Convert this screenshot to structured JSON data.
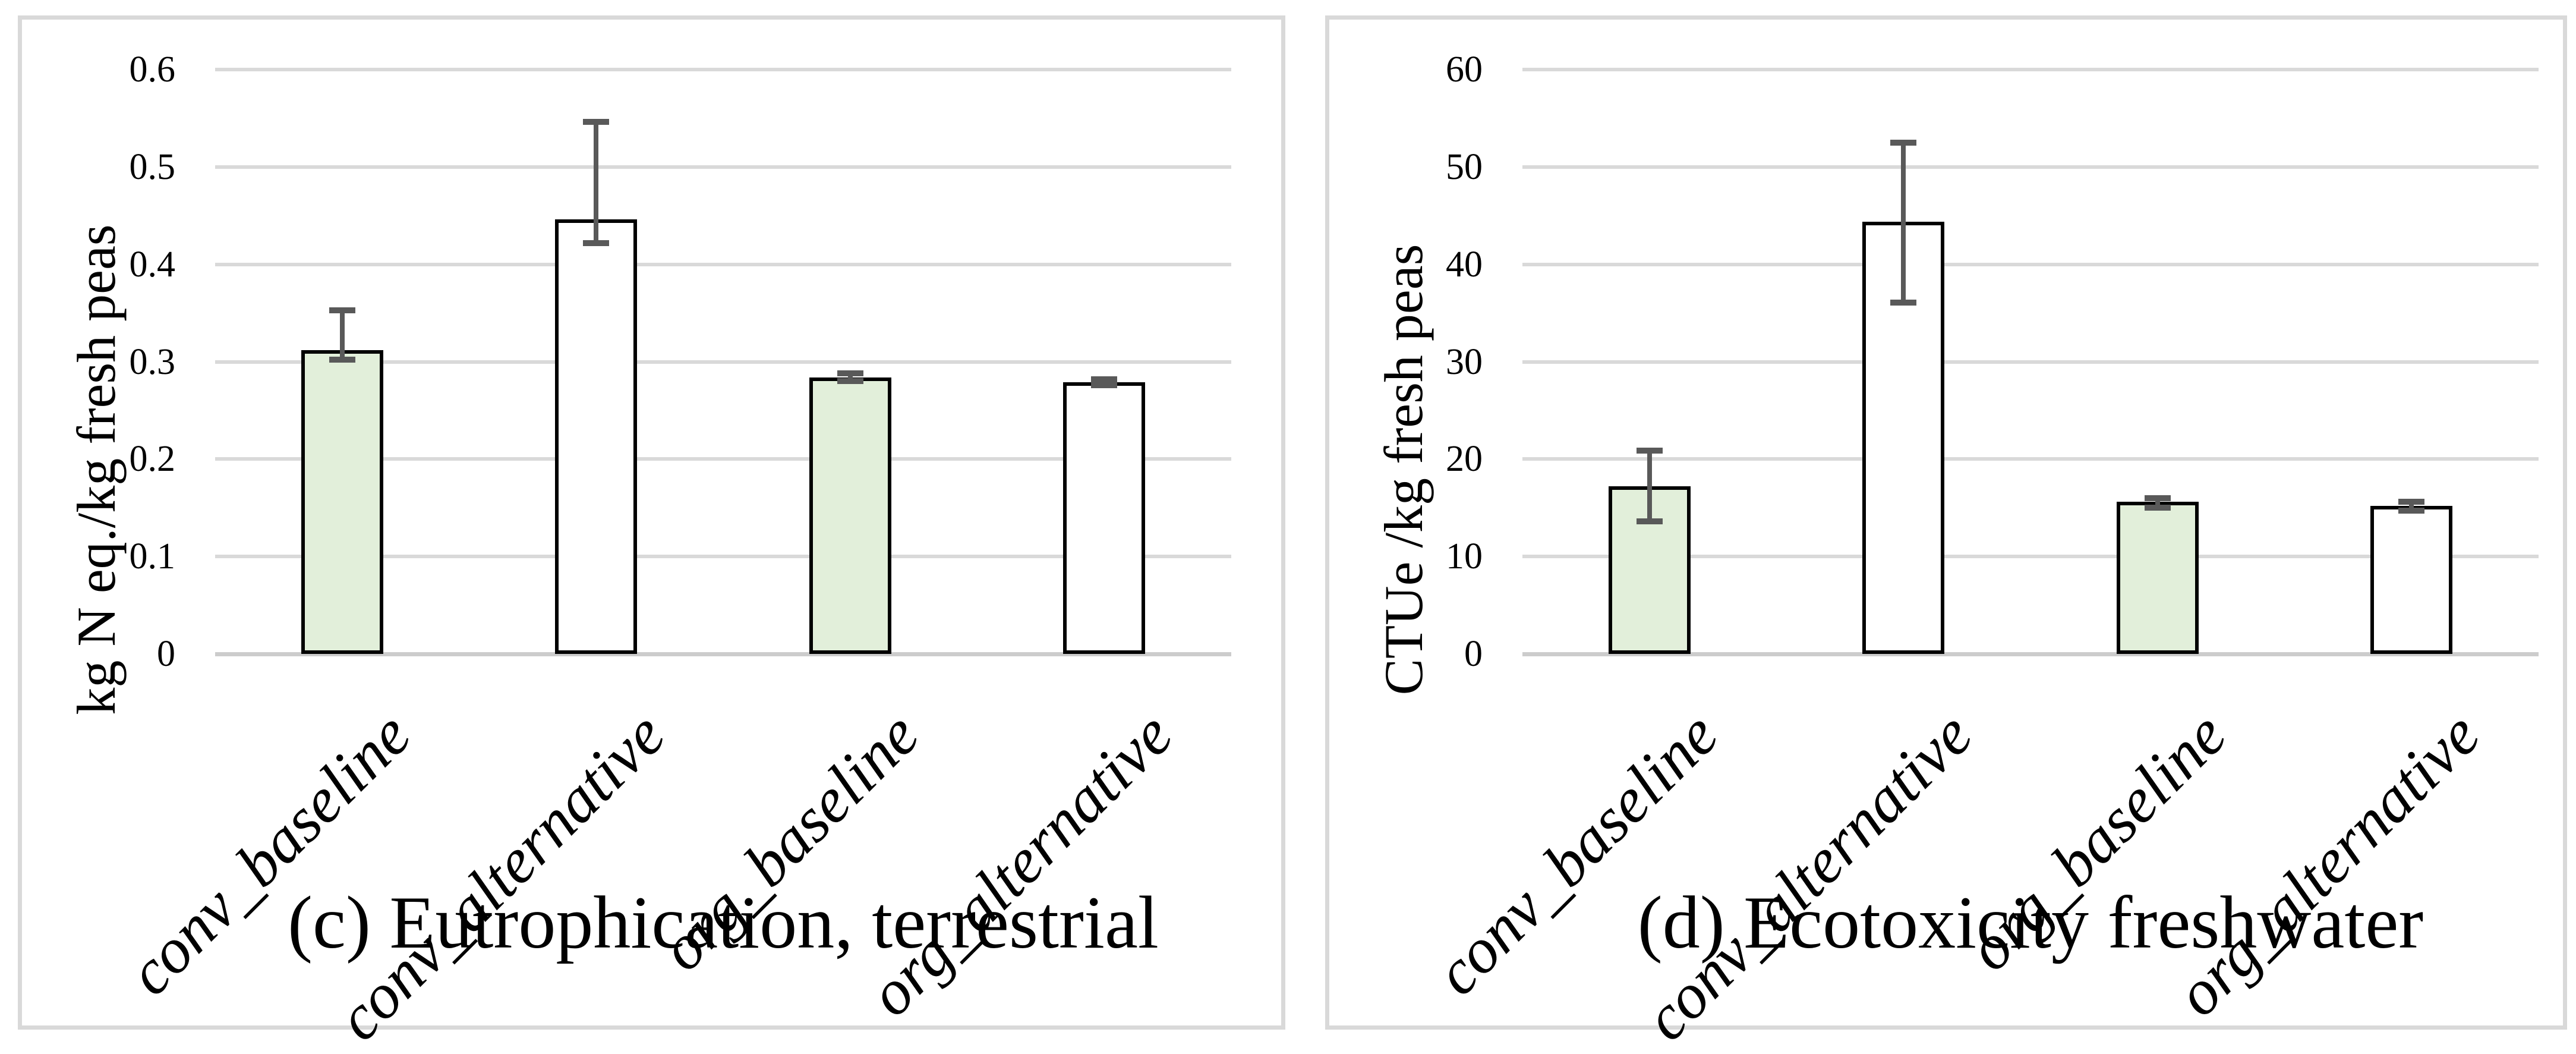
{
  "colors": {
    "bar_fill_baseline": "#e2efda",
    "bar_fill_alternative": "#ffffff",
    "bar_border": "#000000",
    "error_bar": "#595959",
    "gridline": "#d9d9d9",
    "axis_line": "#cccccc",
    "panel_border": "#d9d9d9",
    "text": "#000000"
  },
  "chart_data": [
    {
      "type": "bar",
      "caption": "(c) Eutrophication, terrestrial",
      "ylabel": "kg N eq./kg fresh peas",
      "ylim": [
        0,
        0.6
      ],
      "ytick_labels": [
        "0.6",
        "0.5",
        "0.4",
        "0.3",
        "0.2",
        "0.1",
        "0"
      ],
      "grid": "horizontal",
      "legend": "none",
      "categories": [
        "conv_baseline",
        "conv_alternative",
        "org_baseline",
        "org_alternative"
      ],
      "values": [
        0.312,
        0.446,
        0.284,
        0.279
      ],
      "error_low": [
        0.302,
        0.422,
        0.28,
        0.276
      ],
      "error_high": [
        0.353,
        0.546,
        0.288,
        0.282
      ],
      "bar_fills": [
        "#e2efda",
        "#ffffff",
        "#e2efda",
        "#ffffff"
      ]
    },
    {
      "type": "bar",
      "caption": "(d) Ecotoxicity freshwater",
      "ylabel": "CTUe /kg fresh peas",
      "ylim": [
        0,
        60
      ],
      "ytick_labels": [
        "60",
        "50",
        "40",
        "30",
        "20",
        "10",
        "0"
      ],
      "grid": "horizontal",
      "legend": "none",
      "categories": [
        "conv_baseline",
        "conv_alternative",
        "org_baseline",
        "org_alternative"
      ],
      "values": [
        17.2,
        44.4,
        15.6,
        15.2
      ],
      "error_low": [
        13.6,
        36.1,
        15.0,
        14.7
      ],
      "error_high": [
        20.9,
        52.5,
        16.0,
        15.6
      ],
      "bar_fills": [
        "#e2efda",
        "#ffffff",
        "#e2efda",
        "#ffffff"
      ]
    }
  ]
}
